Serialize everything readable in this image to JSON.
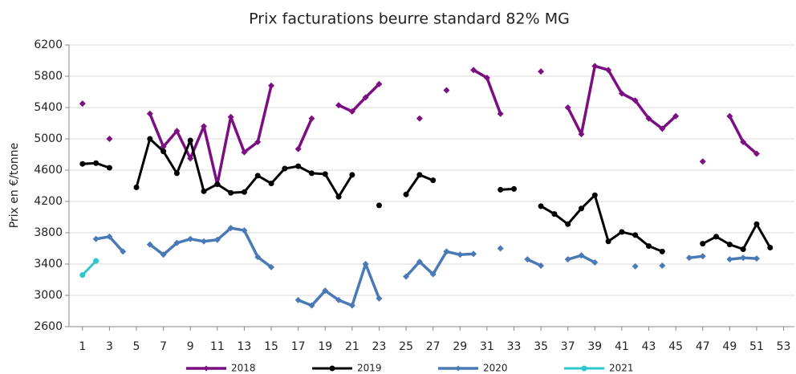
{
  "chart_data": {
    "type": "line",
    "title": "Prix facturations beurre standard 82% MG",
    "y_label": "Prix en €/tonne",
    "x": [
      1,
      2,
      3,
      4,
      5,
      6,
      7,
      8,
      9,
      10,
      11,
      12,
      13,
      14,
      15,
      16,
      17,
      18,
      19,
      20,
      21,
      22,
      23,
      24,
      25,
      26,
      27,
      28,
      29,
      30,
      31,
      32,
      33,
      34,
      35,
      36,
      37,
      38,
      39,
      40,
      41,
      42,
      43,
      44,
      45,
      46,
      47,
      48,
      49,
      50,
      51,
      52,
      53
    ],
    "xlim": [
      0,
      53.8
    ],
    "xticks": [
      1,
      3,
      5,
      7,
      9,
      11,
      13,
      15,
      17,
      19,
      21,
      23,
      25,
      27,
      29,
      31,
      33,
      35,
      37,
      39,
      41,
      43,
      45,
      47,
      49,
      51,
      53
    ],
    "ylim": [
      2600,
      6200
    ],
    "yticks": [
      2600,
      3000,
      3400,
      3800,
      4200,
      4600,
      5000,
      5400,
      5800,
      6200
    ],
    "grid": true,
    "legend": "bottom",
    "series": [
      {
        "name": "2018",
        "color": "#7b0f82",
        "marker": "diamond",
        "values": [
          5450,
          null,
          5000,
          null,
          null,
          5320,
          4900,
          5100,
          4750,
          5160,
          4420,
          5280,
          4830,
          4960,
          5680,
          null,
          4870,
          5260,
          null,
          5430,
          5350,
          5530,
          5700,
          null,
          null,
          5260,
          null,
          5620,
          null,
          5880,
          5780,
          5320,
          null,
          null,
          5860,
          null,
          5400,
          5060,
          5930,
          5880,
          5580,
          5490,
          5260,
          5130,
          5290,
          null,
          4710,
          null,
          5290,
          4960,
          4810,
          null,
          null
        ]
      },
      {
        "name": "2019",
        "color": "#000000",
        "marker": "circle",
        "values": [
          4680,
          4690,
          4630,
          null,
          4380,
          5000,
          4840,
          4560,
          4980,
          4330,
          4420,
          4310,
          4320,
          4530,
          4430,
          4620,
          4650,
          4560,
          4550,
          4260,
          4540,
          null,
          4150,
          null,
          4290,
          4540,
          4470,
          null,
          null,
          null,
          null,
          4350,
          4360,
          null,
          4140,
          4040,
          3910,
          4110,
          4280,
          3690,
          3810,
          3770,
          3630,
          3560,
          null,
          null,
          3660,
          3750,
          3650,
          3590,
          3910,
          3610,
          null
        ]
      },
      {
        "name": "2020",
        "color": "#4a7ab5",
        "marker": "diamond",
        "values": [
          null,
          3720,
          3750,
          3560,
          null,
          3650,
          3520,
          3670,
          3720,
          3690,
          3710,
          3860,
          3830,
          3490,
          3360,
          null,
          2940,
          2870,
          3060,
          2940,
          2870,
          3400,
          2960,
          null,
          3240,
          3430,
          3270,
          3560,
          3520,
          3530,
          null,
          3600,
          null,
          3460,
          3380,
          null,
          3460,
          3510,
          3420,
          null,
          null,
          3370,
          null,
          3380,
          null,
          3480,
          3500,
          null,
          3460,
          3480,
          3470,
          null,
          null
        ]
      },
      {
        "name": "2021",
        "color": "#2cc7cc",
        "marker": "circle",
        "values": [
          3260,
          3440,
          null,
          null,
          null,
          null,
          null,
          null,
          null,
          null,
          null,
          null,
          null,
          null,
          null,
          null,
          null,
          null,
          null,
          null,
          null,
          null,
          null,
          null,
          null,
          null,
          null,
          null,
          null,
          null,
          null,
          null,
          null,
          null,
          null,
          null,
          null,
          null,
          null,
          null,
          null,
          null,
          null,
          null,
          null,
          null,
          null,
          null,
          null,
          null,
          null,
          null,
          null
        ]
      }
    ]
  }
}
